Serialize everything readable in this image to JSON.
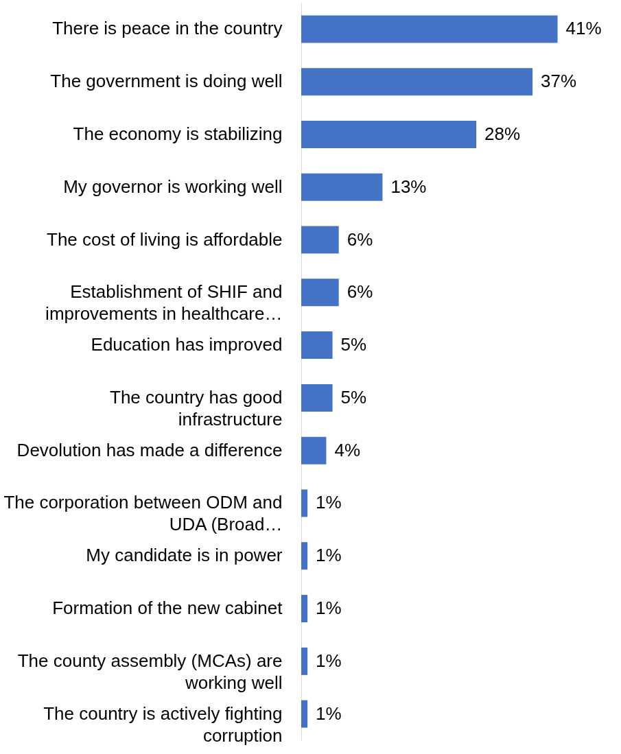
{
  "chart_data": {
    "type": "bar",
    "orientation": "horizontal",
    "color": "#4472c4",
    "categories": [
      "There is peace in the country",
      "The government is doing well",
      "The economy is stabilizing",
      "My governor is working well",
      "The cost of living is affordable",
      "Establishment of SHIF and improvements in healthcare…",
      "Education has improved",
      "The country has good infrastructure",
      "Devolution has made a difference",
      "The corporation between ODM and UDA (Broad…",
      "My candidate is in power",
      "Formation of the new cabinet",
      "The county assembly (MCAs) are working well",
      "The country is actively fighting corruption"
    ],
    "values": [
      41,
      37,
      28,
      13,
      6,
      6,
      5,
      5,
      4,
      1,
      1,
      1,
      1,
      1
    ],
    "value_labels": [
      "41%",
      "37%",
      "28%",
      "13%",
      "6%",
      "6%",
      "5%",
      "5%",
      "4%",
      "1%",
      "1%",
      "1%",
      "1%",
      "1%"
    ]
  }
}
